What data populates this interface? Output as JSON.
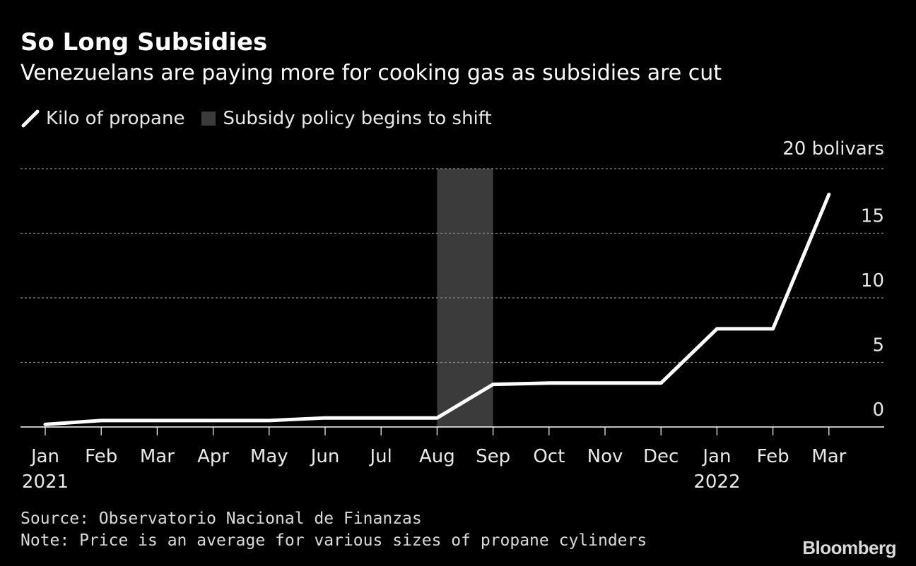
{
  "header": {
    "title": "So Long Subsidies",
    "subtitle": "Venezuelans are paying more for cooking gas as subsidies are cut"
  },
  "legend": {
    "line_label": "Kilo of propane",
    "shade_label": "Subsidy policy begins to shift"
  },
  "chart_data": {
    "type": "line",
    "unit_label": "20 bolivars",
    "x": [
      "Jan",
      "Feb",
      "Mar",
      "Apr",
      "May",
      "Jun",
      "Jul",
      "Aug",
      "Sep",
      "Oct",
      "Nov",
      "Dec",
      "Jan",
      "Feb",
      "Mar"
    ],
    "year_labels": [
      {
        "index": 0,
        "label": "2021"
      },
      {
        "index": 12,
        "label": "2022"
      }
    ],
    "series": [
      {
        "name": "Kilo of propane",
        "color": "#ffffff",
        "values": [
          0.2,
          0.5,
          0.5,
          0.5,
          0.5,
          0.7,
          0.7,
          0.7,
          3.3,
          3.4,
          3.4,
          3.4,
          7.6,
          7.6,
          18.0
        ]
      }
    ],
    "shaded_region": {
      "label": "Subsidy policy begins to shift",
      "from_index": 7,
      "to_index": 8,
      "color": "#3b3b3b"
    },
    "y_ticks": [
      0,
      5,
      10,
      15
    ],
    "ylim": [
      0,
      20
    ],
    "grid": true,
    "background": "#000000"
  },
  "footer": {
    "source": "Source: Observatorio Nacional de Finanzas",
    "note": "Note: Price is an average for various sizes of propane cylinders",
    "brand": "Bloomberg"
  }
}
